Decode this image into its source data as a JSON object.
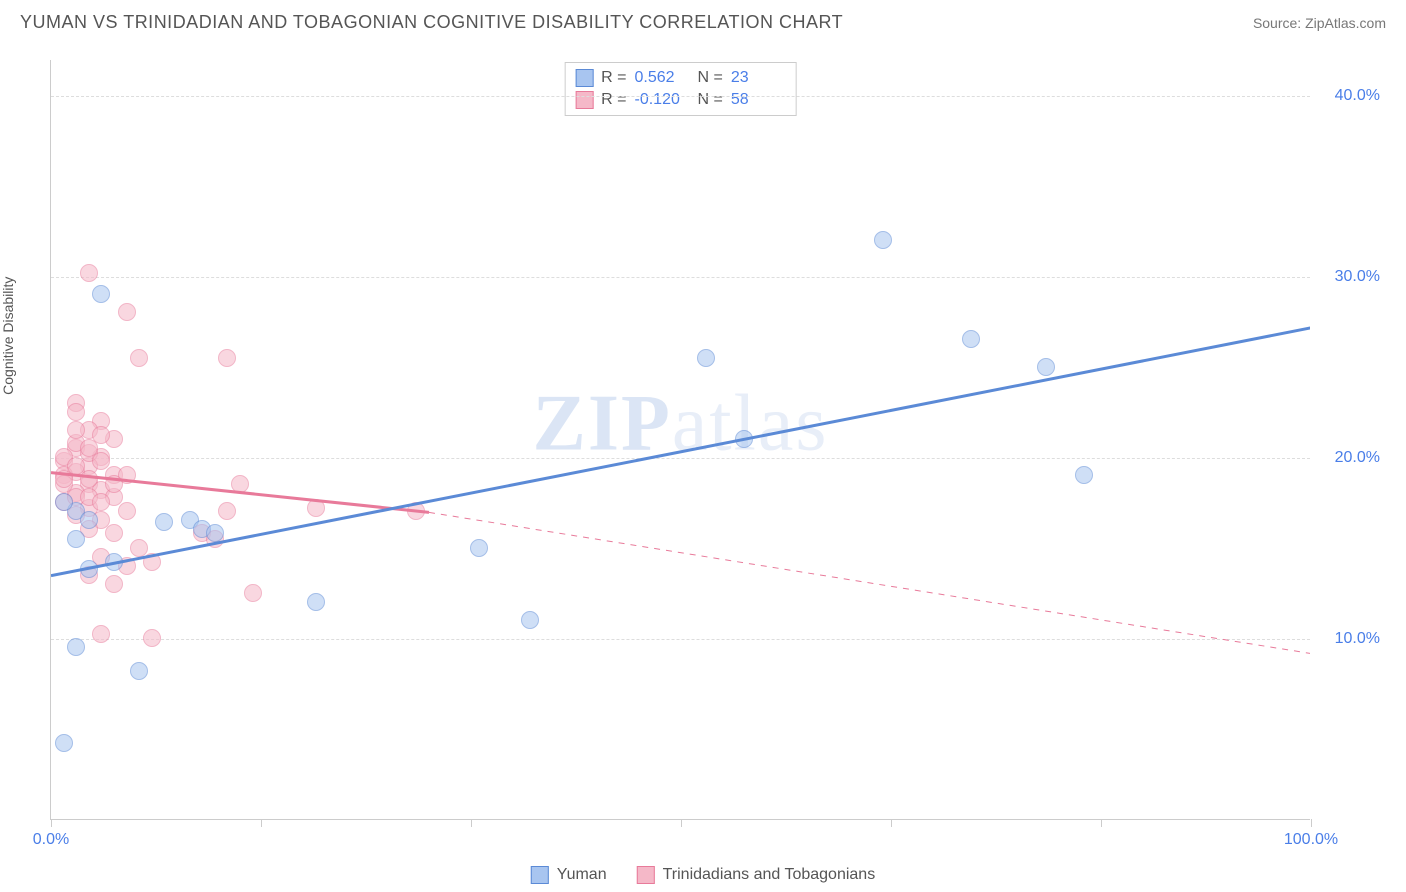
{
  "header": {
    "title": "YUMAN VS TRINIDADIAN AND TOBAGONIAN COGNITIVE DISABILITY CORRELATION CHART",
    "source_prefix": "Source: ",
    "source_name": "ZipAtlas.com"
  },
  "watermark": {
    "bold": "ZIP",
    "light": "atlas"
  },
  "chart": {
    "type": "scatter",
    "ylabel": "Cognitive Disability",
    "xlim": [
      0,
      100
    ],
    "ylim": [
      0,
      42
    ],
    "yticks": [
      10,
      20,
      30,
      40
    ],
    "ytick_labels": [
      "10.0%",
      "20.0%",
      "30.0%",
      "40.0%"
    ],
    "xticks": [
      0,
      16.67,
      33.33,
      50,
      66.67,
      83.33,
      100
    ],
    "xtick_labels_shown": {
      "0": "0.0%",
      "100": "100.0%"
    },
    "background_color": "#ffffff",
    "grid_color": "#dddddd",
    "axis_color": "#cccccc",
    "tick_label_color": "#4a7ee8",
    "point_radius": 9,
    "point_opacity": 0.55,
    "series": [
      {
        "name": "Yuman",
        "color_fill": "#a8c5f0",
        "color_stroke": "#5b8ad6",
        "r_label": "R = ",
        "r_value": "0.562",
        "n_label": "N = ",
        "n_value": "23",
        "trend": {
          "x1": 0,
          "y1": 13.5,
          "x2": 100,
          "y2": 27.2,
          "width": 3,
          "dash": "none"
        },
        "points": [
          [
            1,
            4.2
          ],
          [
            2,
            9.5
          ],
          [
            4,
            29.0
          ],
          [
            2,
            17.0
          ],
          [
            3,
            16.5
          ],
          [
            5,
            14.2
          ],
          [
            7,
            8.2
          ],
          [
            11,
            16.5
          ],
          [
            12,
            16.0
          ],
          [
            13,
            15.8
          ],
          [
            21,
            12.0
          ],
          [
            34,
            15.0
          ],
          [
            38,
            11.0
          ],
          [
            52,
            25.5
          ],
          [
            55,
            21.0
          ],
          [
            66,
            32.0
          ],
          [
            73,
            26.5
          ],
          [
            79,
            25.0
          ],
          [
            82,
            19.0
          ],
          [
            1,
            17.5
          ],
          [
            2,
            15.5
          ],
          [
            3,
            13.8
          ],
          [
            9,
            16.4
          ]
        ]
      },
      {
        "name": "Trinidadians and Tobagonians",
        "color_fill": "#f5b8c8",
        "color_stroke": "#e87a9a",
        "r_label": "R = ",
        "r_value": "-0.120",
        "n_label": "N = ",
        "n_value": "58",
        "trend_solid": {
          "x1": 0,
          "y1": 19.2,
          "x2": 30,
          "y2": 17.0,
          "width": 3,
          "dash": "none"
        },
        "trend_dash": {
          "x1": 30,
          "y1": 17.0,
          "x2": 100,
          "y2": 9.2,
          "width": 1,
          "dash": "6,6"
        },
        "points": [
          [
            3,
            30.2
          ],
          [
            6,
            28.0
          ],
          [
            7,
            25.5
          ],
          [
            14,
            25.5
          ],
          [
            2,
            23.0
          ],
          [
            4,
            22.0
          ],
          [
            3,
            21.5
          ],
          [
            5,
            21.0
          ],
          [
            2,
            20.5
          ],
          [
            4,
            20.0
          ],
          [
            1,
            19.8
          ],
          [
            3,
            19.5
          ],
          [
            2,
            19.2
          ],
          [
            5,
            19.0
          ],
          [
            6,
            19.0
          ],
          [
            3,
            18.5
          ],
          [
            4,
            18.2
          ],
          [
            2,
            18.0
          ],
          [
            5,
            17.8
          ],
          [
            1,
            17.5
          ],
          [
            3,
            17.2
          ],
          [
            6,
            17.0
          ],
          [
            2,
            16.8
          ],
          [
            4,
            16.5
          ],
          [
            15,
            18.5
          ],
          [
            3,
            16.0
          ],
          [
            5,
            15.8
          ],
          [
            12,
            15.8
          ],
          [
            13,
            15.5
          ],
          [
            14,
            17.0
          ],
          [
            7,
            15.0
          ],
          [
            4,
            14.5
          ],
          [
            6,
            14.0
          ],
          [
            8,
            14.2
          ],
          [
            3,
            13.5
          ],
          [
            5,
            13.0
          ],
          [
            16,
            12.5
          ],
          [
            21,
            17.2
          ],
          [
            29,
            17.0
          ],
          [
            4,
            10.2
          ],
          [
            8,
            10.0
          ],
          [
            1,
            19.0
          ],
          [
            2,
            20.8
          ],
          [
            3,
            20.2
          ],
          [
            4,
            21.2
          ],
          [
            1,
            18.5
          ],
          [
            2,
            17.8
          ],
          [
            1,
            20.0
          ],
          [
            3,
            20.5
          ],
          [
            2,
            21.5
          ],
          [
            4,
            19.8
          ],
          [
            1,
            18.8
          ],
          [
            2,
            19.5
          ],
          [
            3,
            18.8
          ],
          [
            5,
            18.5
          ],
          [
            2,
            22.5
          ],
          [
            3,
            17.8
          ],
          [
            4,
            17.5
          ]
        ]
      }
    ],
    "legend_bottom": [
      {
        "label": "Yuman",
        "fill": "#a8c5f0",
        "stroke": "#5b8ad6"
      },
      {
        "label": "Trinidadians and Tobagonians",
        "fill": "#f5b8c8",
        "stroke": "#e87a9a"
      }
    ]
  }
}
